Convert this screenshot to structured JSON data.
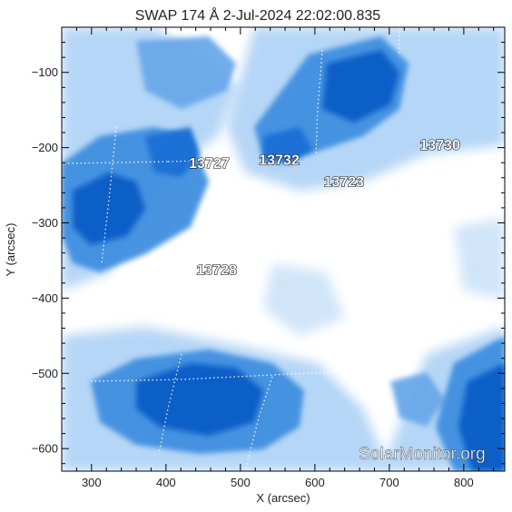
{
  "title": "SWAP 174 Å  2-Jul-2024 22:02:00.835",
  "x_axis": {
    "label": "X (arcsec)",
    "range": [
      260,
      855
    ],
    "ticks": [
      "300",
      "400",
      "500",
      "600",
      "700",
      "800"
    ]
  },
  "y_axis": {
    "label": "Y (arcsec)",
    "range": [
      -630,
      -40
    ],
    "ticks": [
      "-100",
      "-200",
      "-300",
      "-400",
      "-500",
      "-600"
    ]
  },
  "active_regions": [
    {
      "label": "13727",
      "x": 458,
      "y": -227
    },
    {
      "label": "13732",
      "x": 552,
      "y": -223
    },
    {
      "label": "13723",
      "x": 639,
      "y": -252
    },
    {
      "label": "13730",
      "x": 768,
      "y": -203
    },
    {
      "label": "13728",
      "x": 468,
      "y": -369
    }
  ],
  "watermark": "SolarMonitor.org",
  "colors": {
    "emission_strong": "#0a5fc8",
    "emission_mid": "#3f8fe0",
    "emission_weak": "#a9cff5",
    "background": "#ffffff",
    "frame": "#000000"
  }
}
